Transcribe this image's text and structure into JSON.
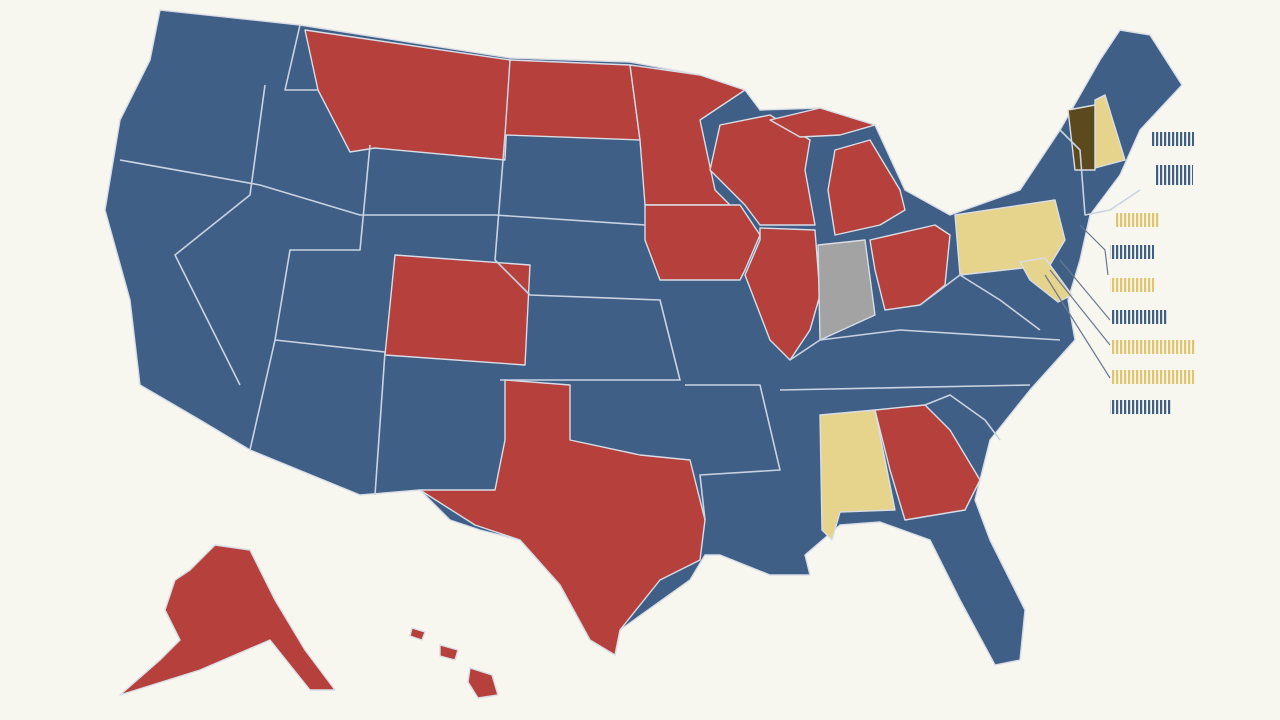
{
  "map": {
    "palette": [
      "#3f5f86",
      "#b5403c",
      "#e6d48c",
      "#a3a3a3",
      "#5c4a1e"
    ]
  }
}
